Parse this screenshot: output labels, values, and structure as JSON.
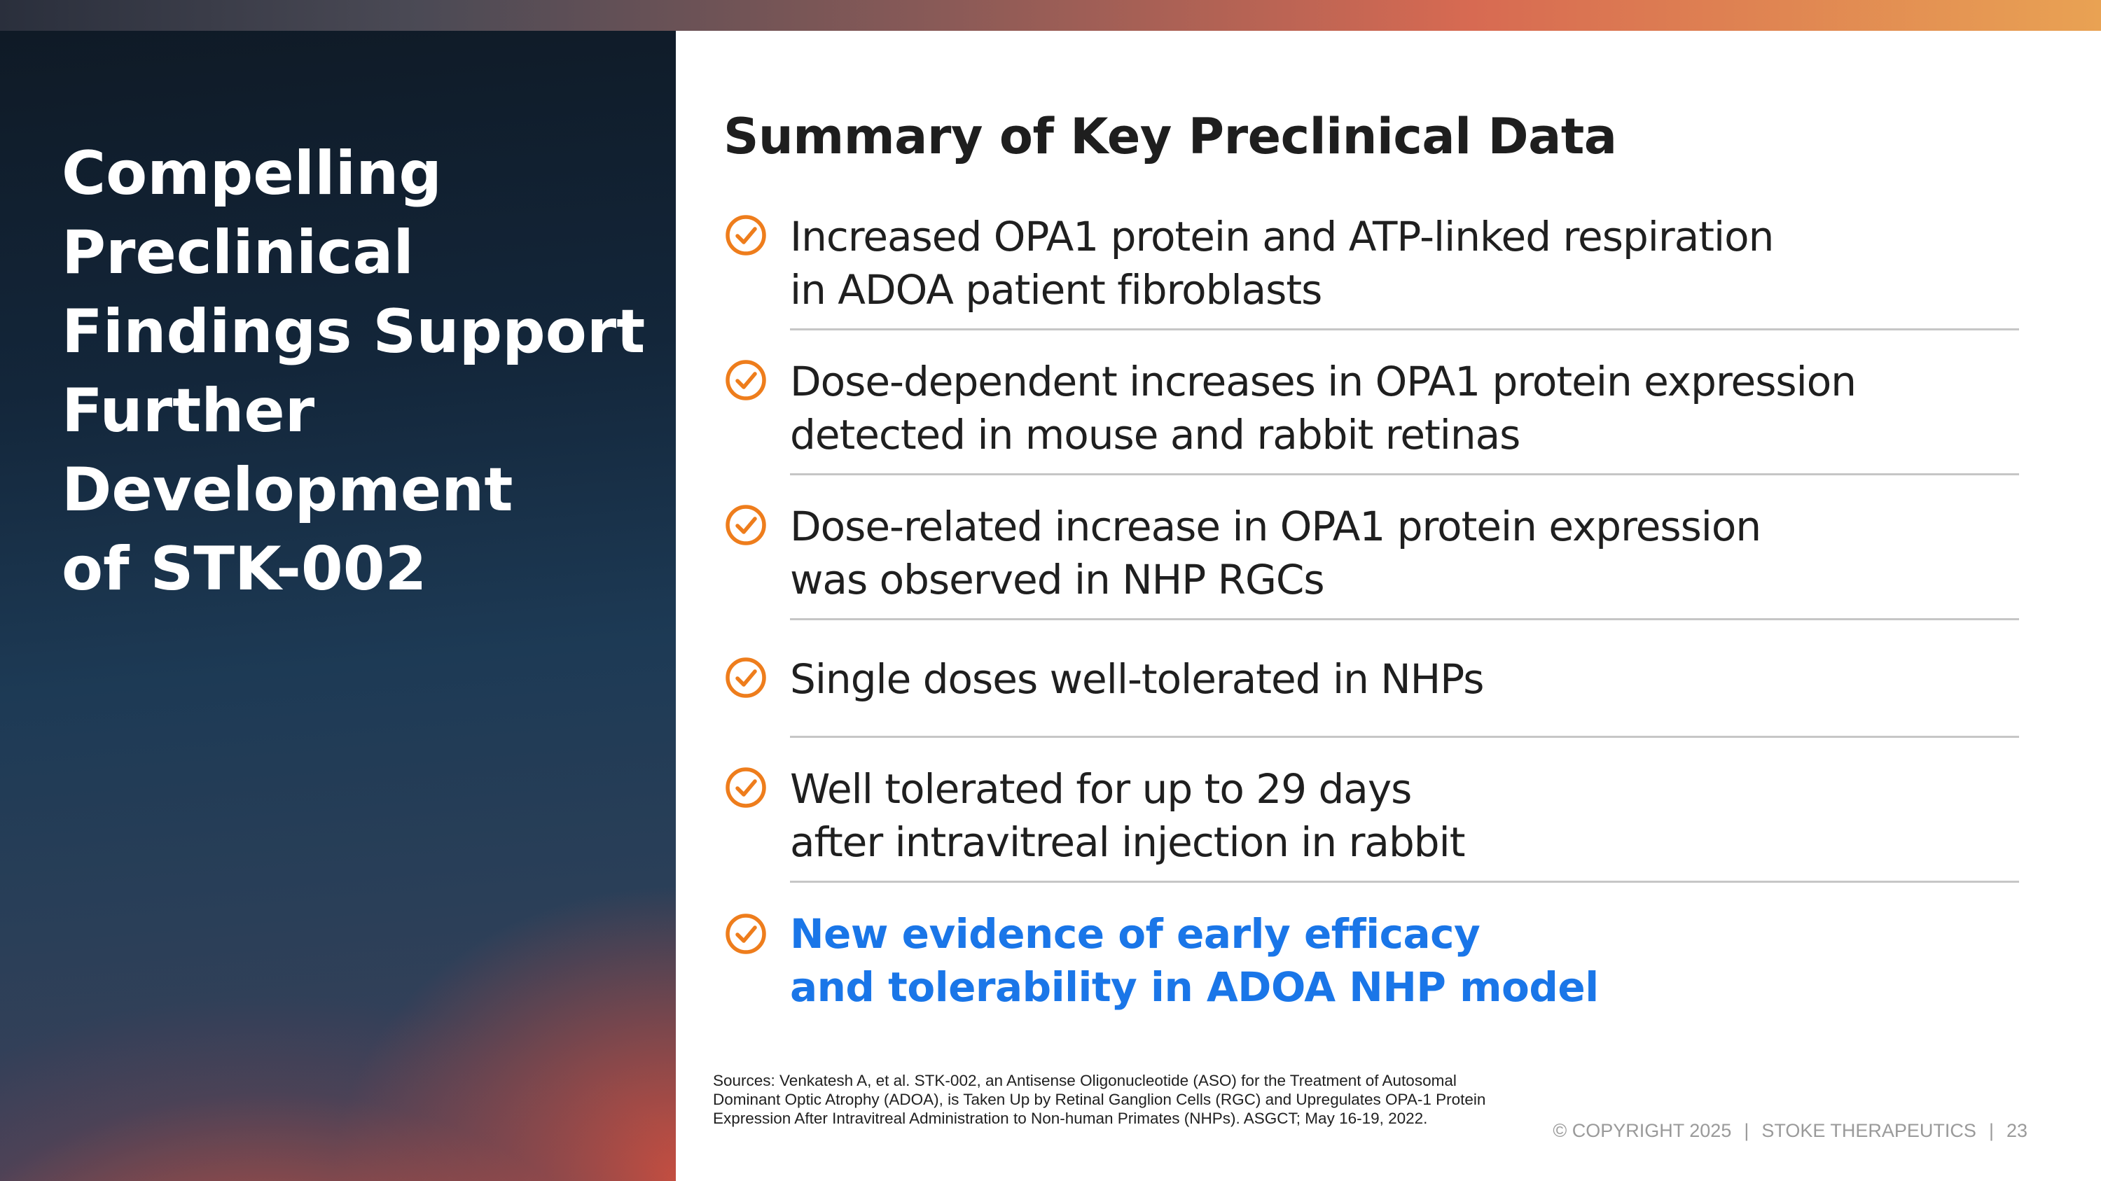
{
  "left_panel": {
    "title_lines": [
      "Compelling",
      "Preclinical",
      "Findings Support",
      "Further",
      "Development",
      "of STK-002"
    ]
  },
  "main": {
    "heading": "Summary of Key Preclinical Data",
    "items": [
      {
        "icon": "check-circle-icon",
        "lines": [
          "Increased OPA1 protein and ATP-linked respiration",
          "in ADOA patient fibroblasts"
        ]
      },
      {
        "icon": "check-circle-icon",
        "lines": [
          "Dose-dependent increases in OPA1 protein expression",
          "detected in mouse and rabbit retinas"
        ]
      },
      {
        "icon": "check-circle-icon",
        "lines": [
          "Dose-related increase in OPA1 protein expression",
          "was observed in NHP RGCs"
        ]
      },
      {
        "icon": "check-circle-icon",
        "lines": [
          "Single doses well-tolerated in NHPs"
        ]
      },
      {
        "icon": "check-circle-icon",
        "lines": [
          "Well tolerated for up to 29 days",
          "after intravitreal injection in rabbit"
        ]
      },
      {
        "icon": "check-circle-icon",
        "lines": [
          "New evidence of early efficacy",
          "and tolerability in ADOA NHP model"
        ]
      }
    ]
  },
  "sources": "Sources: Venkatesh A, et al. STK-002, an Antisense Oligonucleotide (ASO) for the Treatment of Autosomal Dominant Optic Atrophy (ADOA), is Taken Up by Retinal Ganglion Cells (RGC) and Upregulates OPA-1 Protein Expression After Intravitreal Administration to Non-human Primates (NHPs). ASGCT; May 16-19, 2022.",
  "footer": {
    "copyright": "© COPYRIGHT 2025",
    "company": "STOKE THERAPEUTICS",
    "page_number": "23",
    "separator": "|"
  },
  "colors": {
    "accent_orange": "#ee7d1c",
    "highlight_blue": "#1a76e8",
    "divider": "#c6c6c6"
  }
}
